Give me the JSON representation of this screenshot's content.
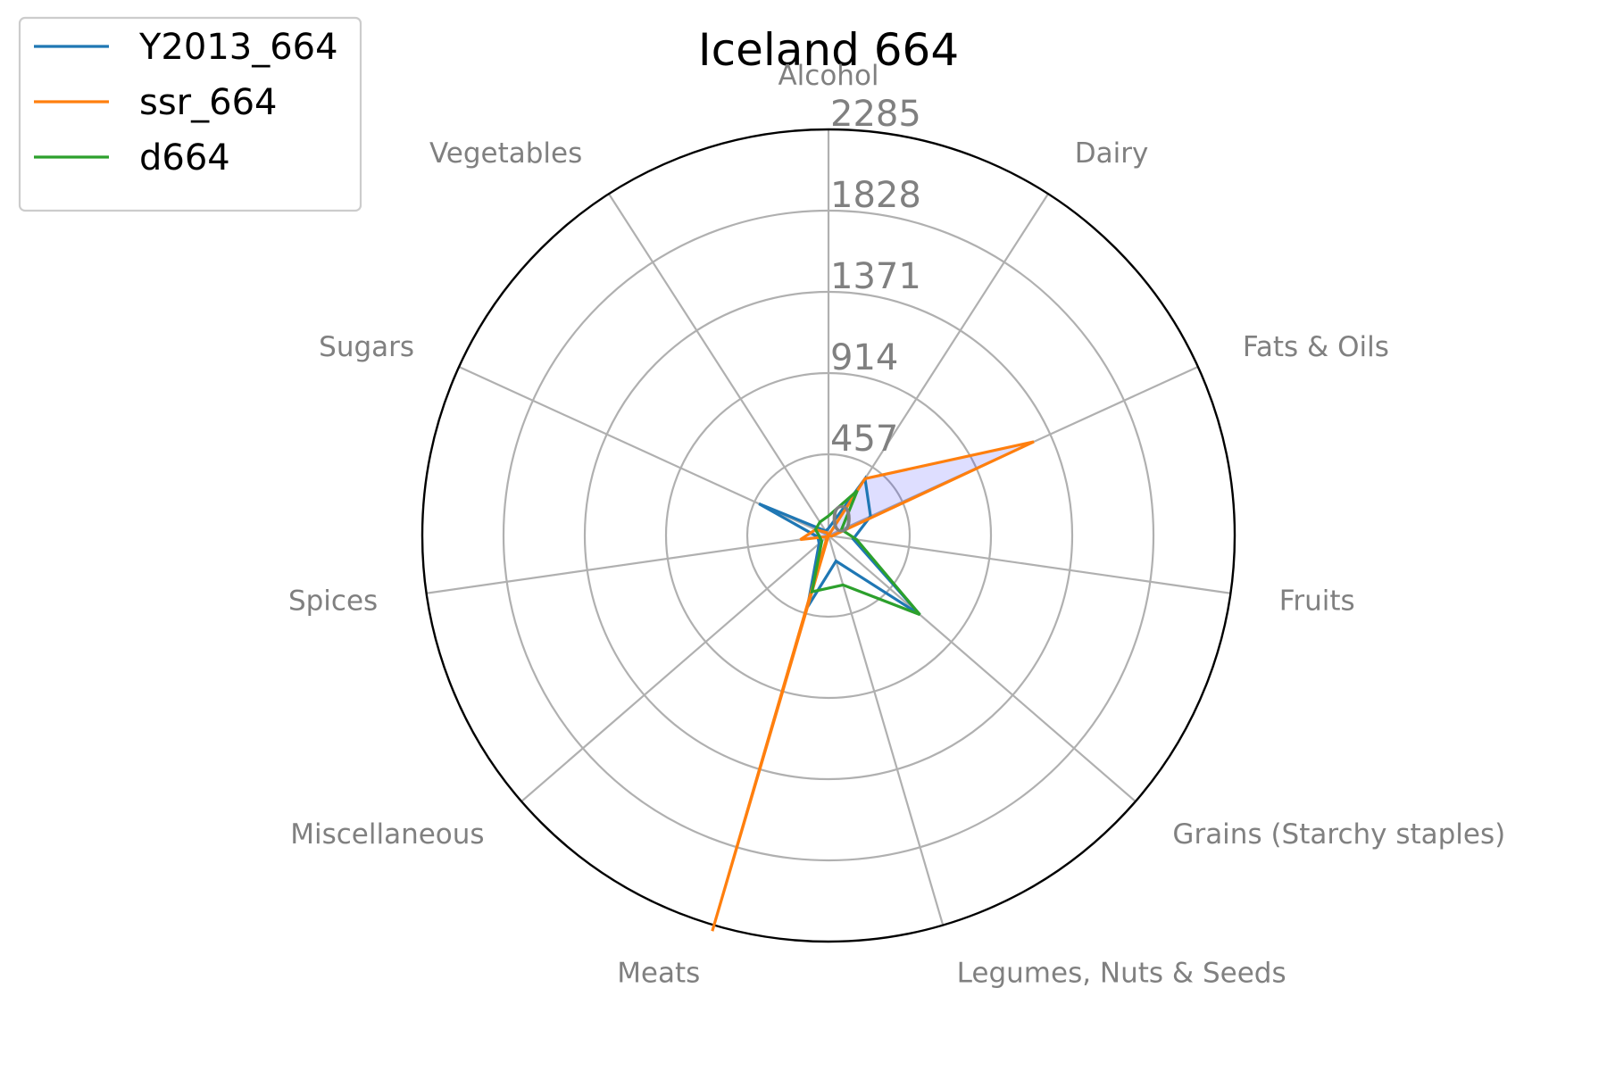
{
  "chart_data": {
    "type": "radar",
    "title": "Iceland 664",
    "categories": [
      "Alcohol",
      "Dairy",
      "Fats & Oils",
      "Fruits",
      "Grains (Starchy staples)",
      "Legumes, Nuts & Seeds",
      "Meats",
      "Miscellaneous",
      "Spices",
      "Sugars",
      "Vegetables"
    ],
    "rlim": [
      0,
      2285
    ],
    "ticks": [
      "0",
      "457",
      "914",
      "1371",
      "1828",
      "2285"
    ],
    "tick_values": [
      0,
      457,
      914,
      1371,
      1828,
      2285
    ],
    "grid": true,
    "legend_position": "top-left",
    "series": [
      {
        "name": "Y2013_664",
        "color": "#1f77b4",
        "values": [
          40,
          380,
          260,
          140,
          680,
          150,
          420,
          70,
          60,
          430,
          30
        ]
      },
      {
        "name": "ssr_664",
        "color": "#ff7f0e",
        "values": [
          0,
          380,
          1270,
          20,
          0,
          0,
          2320,
          10,
          160,
          80,
          20
        ]
      },
      {
        "name": "d664",
        "color": "#2ca02c",
        "values": [
          110,
          300,
          80,
          160,
          680,
          290,
          330,
          50,
          50,
          80,
          90
        ]
      }
    ],
    "fill": {
      "series": "ssr_664",
      "color": "#0000ff",
      "opacity": 0.13
    }
  }
}
